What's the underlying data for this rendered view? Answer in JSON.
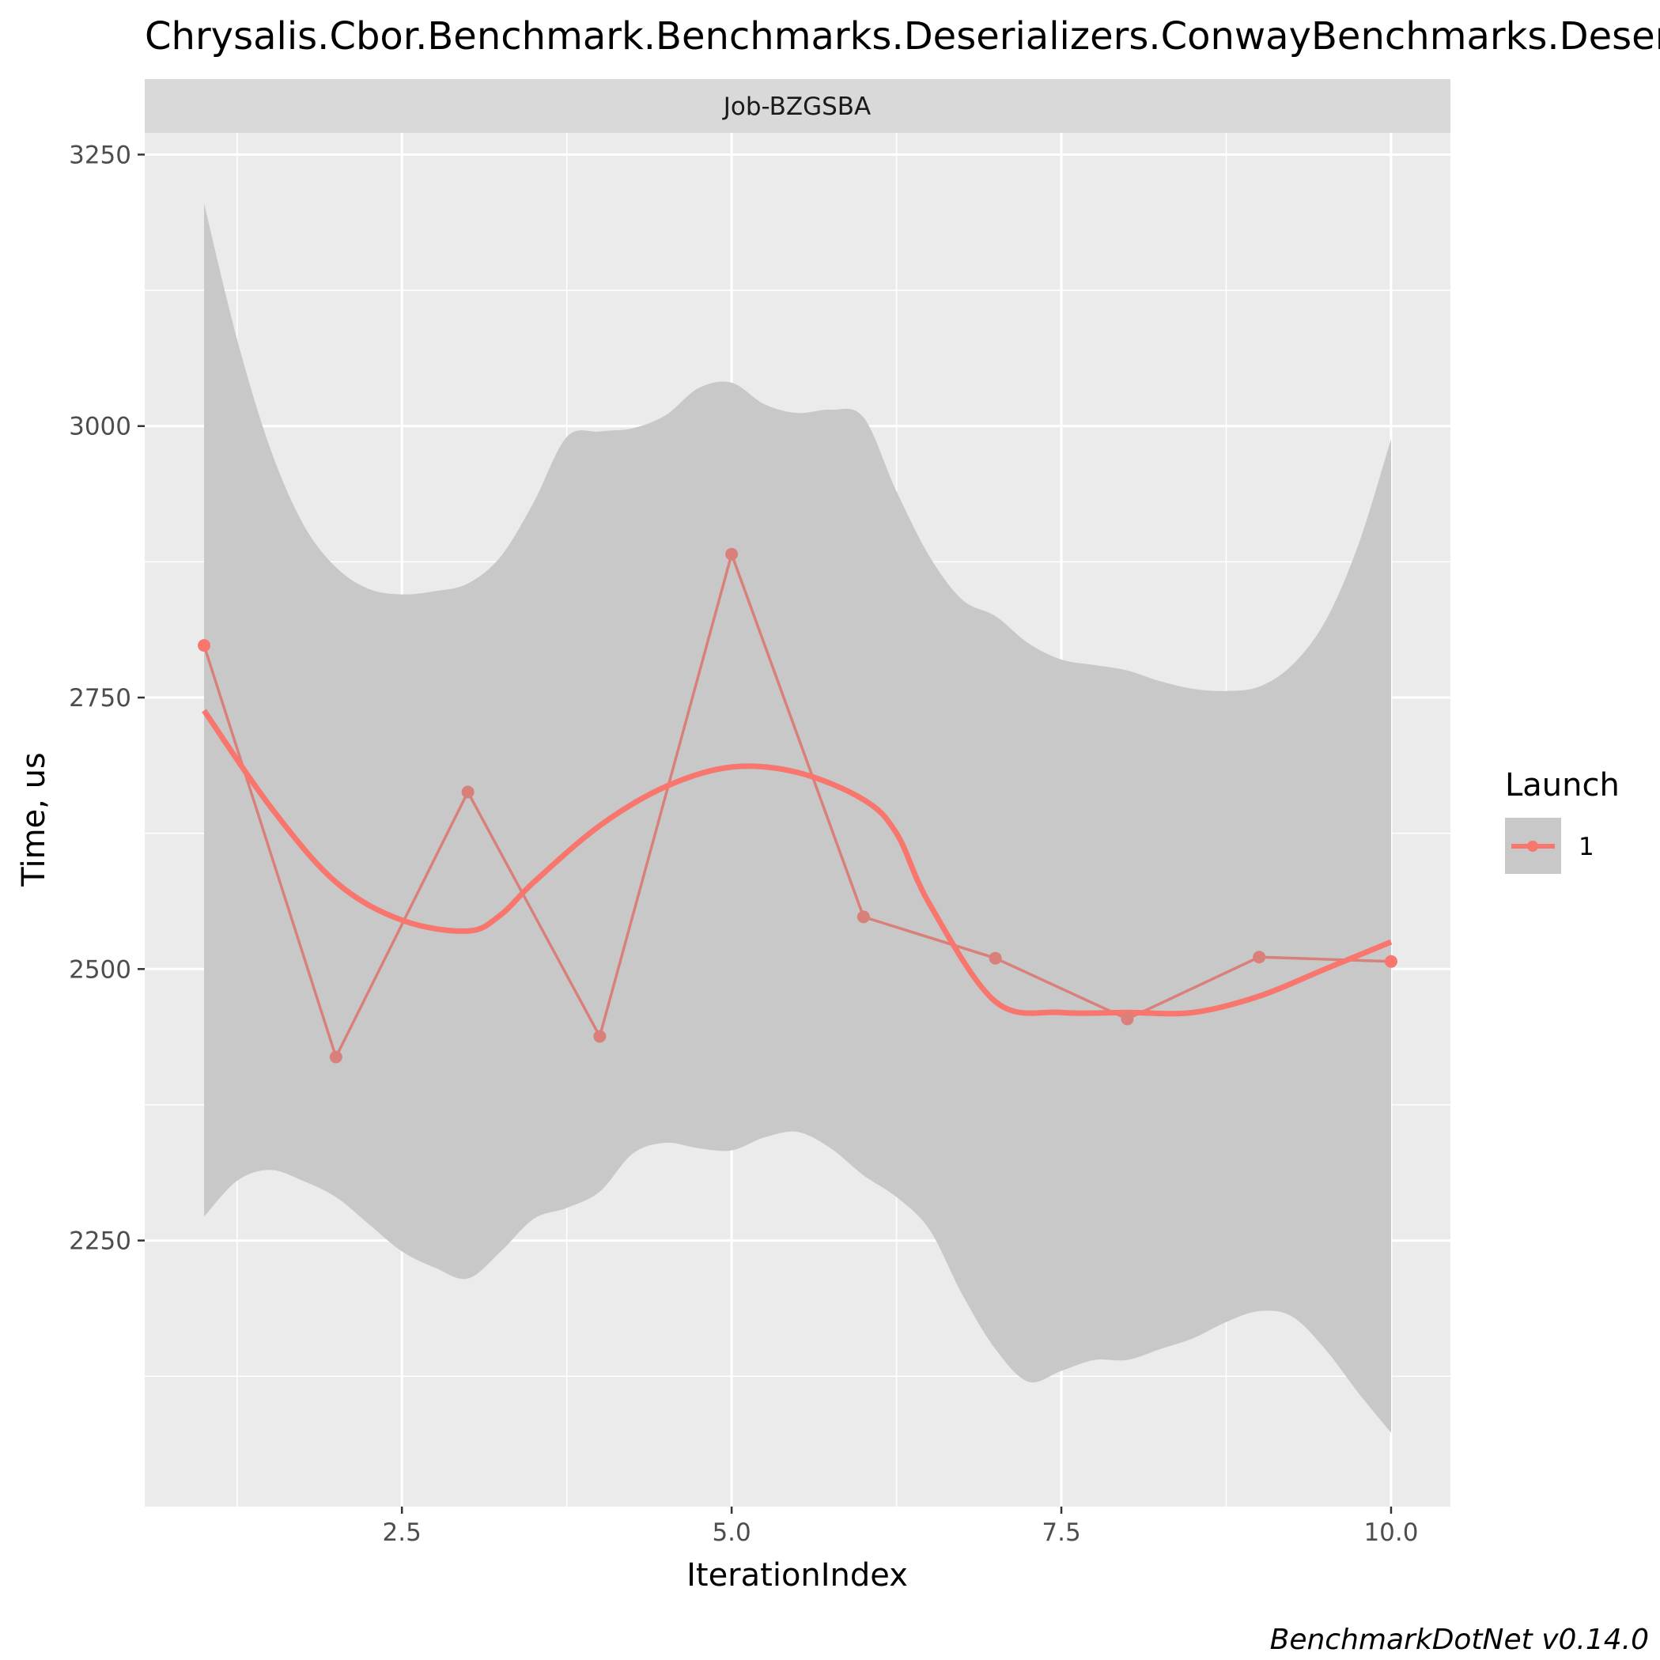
{
  "colors": {
    "panel_bg": "#EBEBEB",
    "grid_major": "#FFFFFF",
    "strip_bg": "#D9D9D9",
    "ribbon": "#C8C8C8",
    "series": "#F8766D",
    "raw_line": "#D9807A",
    "tick": "#333333"
  },
  "chart_data": {
    "type": "line",
    "title": "Chrysalis.Cbor.Benchmark.Benchmarks.Deserializers.ConwayBenchmarks.Deserialize_WithCache: Job-BZGSBA",
    "facet": "Job-BZGSBA",
    "xlabel": "IterationIndex",
    "ylabel": "Time, us",
    "caption": "BenchmarkDotNet v0.14.0",
    "xlim": [
      0.55,
      10.45
    ],
    "ylim": [
      2005,
      3270
    ],
    "x_ticks": [
      2.5,
      5.0,
      7.5,
      10.0
    ],
    "x_tick_labels": [
      "2.5",
      "5.0",
      "7.5",
      "10.0"
    ],
    "y_ticks": [
      2250,
      2500,
      2750,
      3000,
      3250
    ],
    "y_tick_labels": [
      "2250",
      "2500",
      "2750",
      "3000",
      "3250"
    ],
    "grid": true,
    "legend": {
      "title": "Launch",
      "position": "right",
      "entries": [
        "1"
      ]
    },
    "series": [
      {
        "name": "1",
        "x": [
          1,
          2,
          3,
          4,
          5,
          6,
          7,
          8,
          9,
          10
        ],
        "y": [
          2798,
          2419,
          2663,
          2438,
          2882,
          2548,
          2510,
          2454,
          2511,
          2507
        ]
      }
    ],
    "smooth": {
      "x": [
        1.0,
        1.5,
        2.0,
        2.5,
        3.0,
        3.25,
        3.5,
        4.0,
        4.5,
        5.0,
        5.5,
        6.0,
        6.25,
        6.5,
        7.0,
        7.5,
        8.0,
        8.5,
        9.0,
        9.5,
        10.0
      ],
      "y": [
        2738,
        2650,
        2580,
        2545,
        2535,
        2550,
        2580,
        2632,
        2668,
        2686,
        2681,
        2656,
        2625,
        2560,
        2470,
        2460,
        2460,
        2460,
        2475,
        2500,
        2525
      ]
    },
    "ribbon": {
      "x": [
        1.0,
        1.25,
        1.5,
        1.75,
        2.0,
        2.25,
        2.5,
        2.75,
        3.0,
        3.25,
        3.5,
        3.75,
        4.0,
        4.25,
        4.5,
        4.75,
        5.0,
        5.25,
        5.5,
        5.75,
        6.0,
        6.25,
        6.5,
        6.75,
        7.0,
        7.25,
        7.5,
        7.75,
        8.0,
        8.25,
        8.5,
        8.75,
        9.0,
        9.25,
        9.5,
        9.75,
        10.0
      ],
      "upper": [
        3205,
        3080,
        2980,
        2910,
        2870,
        2850,
        2845,
        2848,
        2855,
        2880,
        2930,
        2990,
        2995,
        2998,
        3010,
        3035,
        3040,
        3020,
        3012,
        3015,
        3008,
        2940,
        2880,
        2840,
        2825,
        2800,
        2785,
        2780,
        2775,
        2765,
        2758,
        2756,
        2760,
        2780,
        2820,
        2890,
        2988
      ],
      "lower": [
        2272,
        2305,
        2315,
        2305,
        2290,
        2265,
        2240,
        2225,
        2215,
        2240,
        2270,
        2280,
        2295,
        2330,
        2340,
        2335,
        2333,
        2345,
        2350,
        2335,
        2310,
        2290,
        2260,
        2200,
        2150,
        2120,
        2130,
        2140,
        2140,
        2150,
        2160,
        2175,
        2185,
        2180,
        2150,
        2110,
        2073
      ]
    }
  }
}
